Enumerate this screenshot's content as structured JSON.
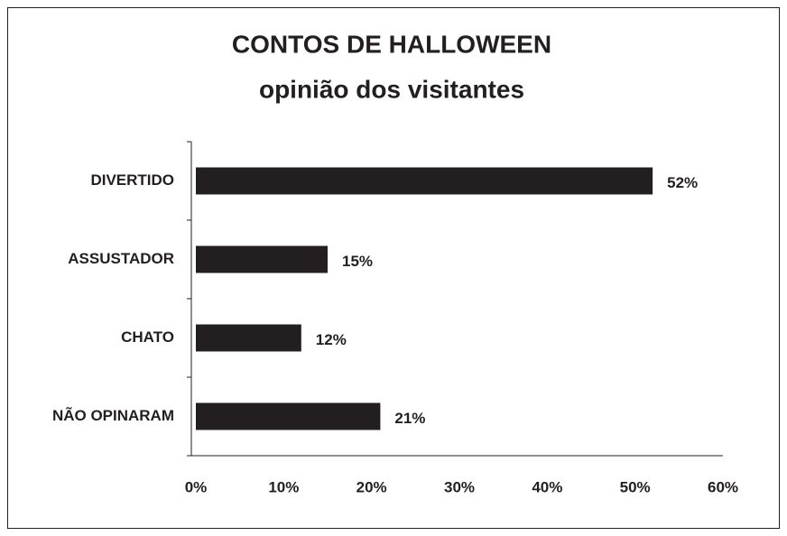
{
  "chart_data": {
    "type": "bar",
    "orientation": "horizontal",
    "title": "CONTOS DE HALLOWEEN",
    "subtitle": "opinião dos visitantes",
    "categories": [
      "DIVERTIDO",
      "ASSUSTADOR",
      "CHATO",
      "NÃO OPINARAM"
    ],
    "values": [
      52,
      15,
      12,
      21
    ],
    "value_labels": [
      "52%",
      "15%",
      "12%",
      "21%"
    ],
    "color": "#231f20",
    "xlim": [
      0,
      60
    ],
    "xticks": [
      {
        "value": 0,
        "label": "0%"
      },
      {
        "value": 10,
        "label": "10%"
      },
      {
        "value": 20,
        "label": "20%"
      },
      {
        "value": 30,
        "label": "30%"
      },
      {
        "value": 40,
        "label": "40%"
      },
      {
        "value": 50,
        "label": "50%"
      },
      {
        "value": 60,
        "label": "60%"
      }
    ],
    "grid": false
  }
}
